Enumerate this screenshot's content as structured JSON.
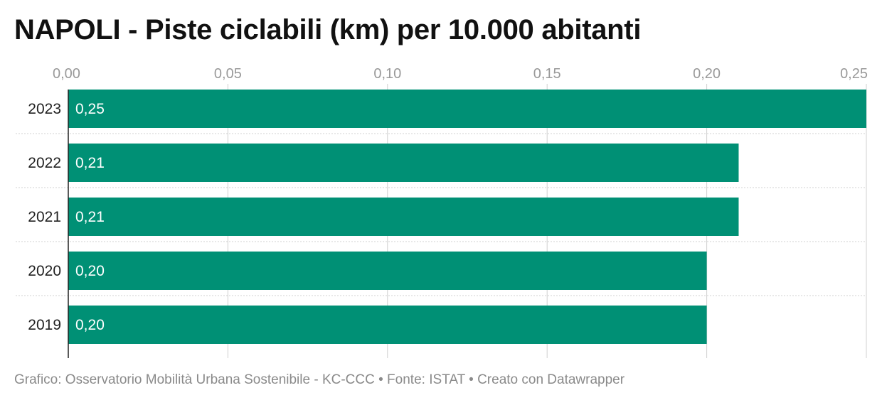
{
  "title": "NAPOLI - Piste ciclabili (km) per 10.000 abitanti",
  "footer": "Grafico: Osservatorio Mobilità Urbana Sostenibile - KC-CCC • Fonte: ISTAT • Creato con Datawrapper",
  "colors": {
    "bar": "#009075",
    "bar_label": "#ffffff",
    "tick_label": "#999999",
    "category_label": "#222222",
    "grid": "#d0d0d0",
    "axis": "#222222"
  },
  "chart_data": {
    "type": "bar",
    "orientation": "horizontal",
    "categories": [
      "2023",
      "2022",
      "2021",
      "2020",
      "2019"
    ],
    "values": [
      0.25,
      0.21,
      0.21,
      0.2,
      0.2
    ],
    "value_labels": [
      "0,25",
      "0,21",
      "0,21",
      "0,20",
      "0,20"
    ],
    "x_ticks": [
      0,
      0.05,
      0.1,
      0.15,
      0.2,
      0.25
    ],
    "x_tick_labels": [
      "0,00",
      "0,05",
      "0,10",
      "0,15",
      "0,20",
      "0,25"
    ],
    "xlim": [
      0,
      0.25
    ],
    "grid": true,
    "legend": "none",
    "title": "NAPOLI - Piste ciclabili (km) per 10.000 abitanti",
    "xlabel": "",
    "ylabel": ""
  }
}
